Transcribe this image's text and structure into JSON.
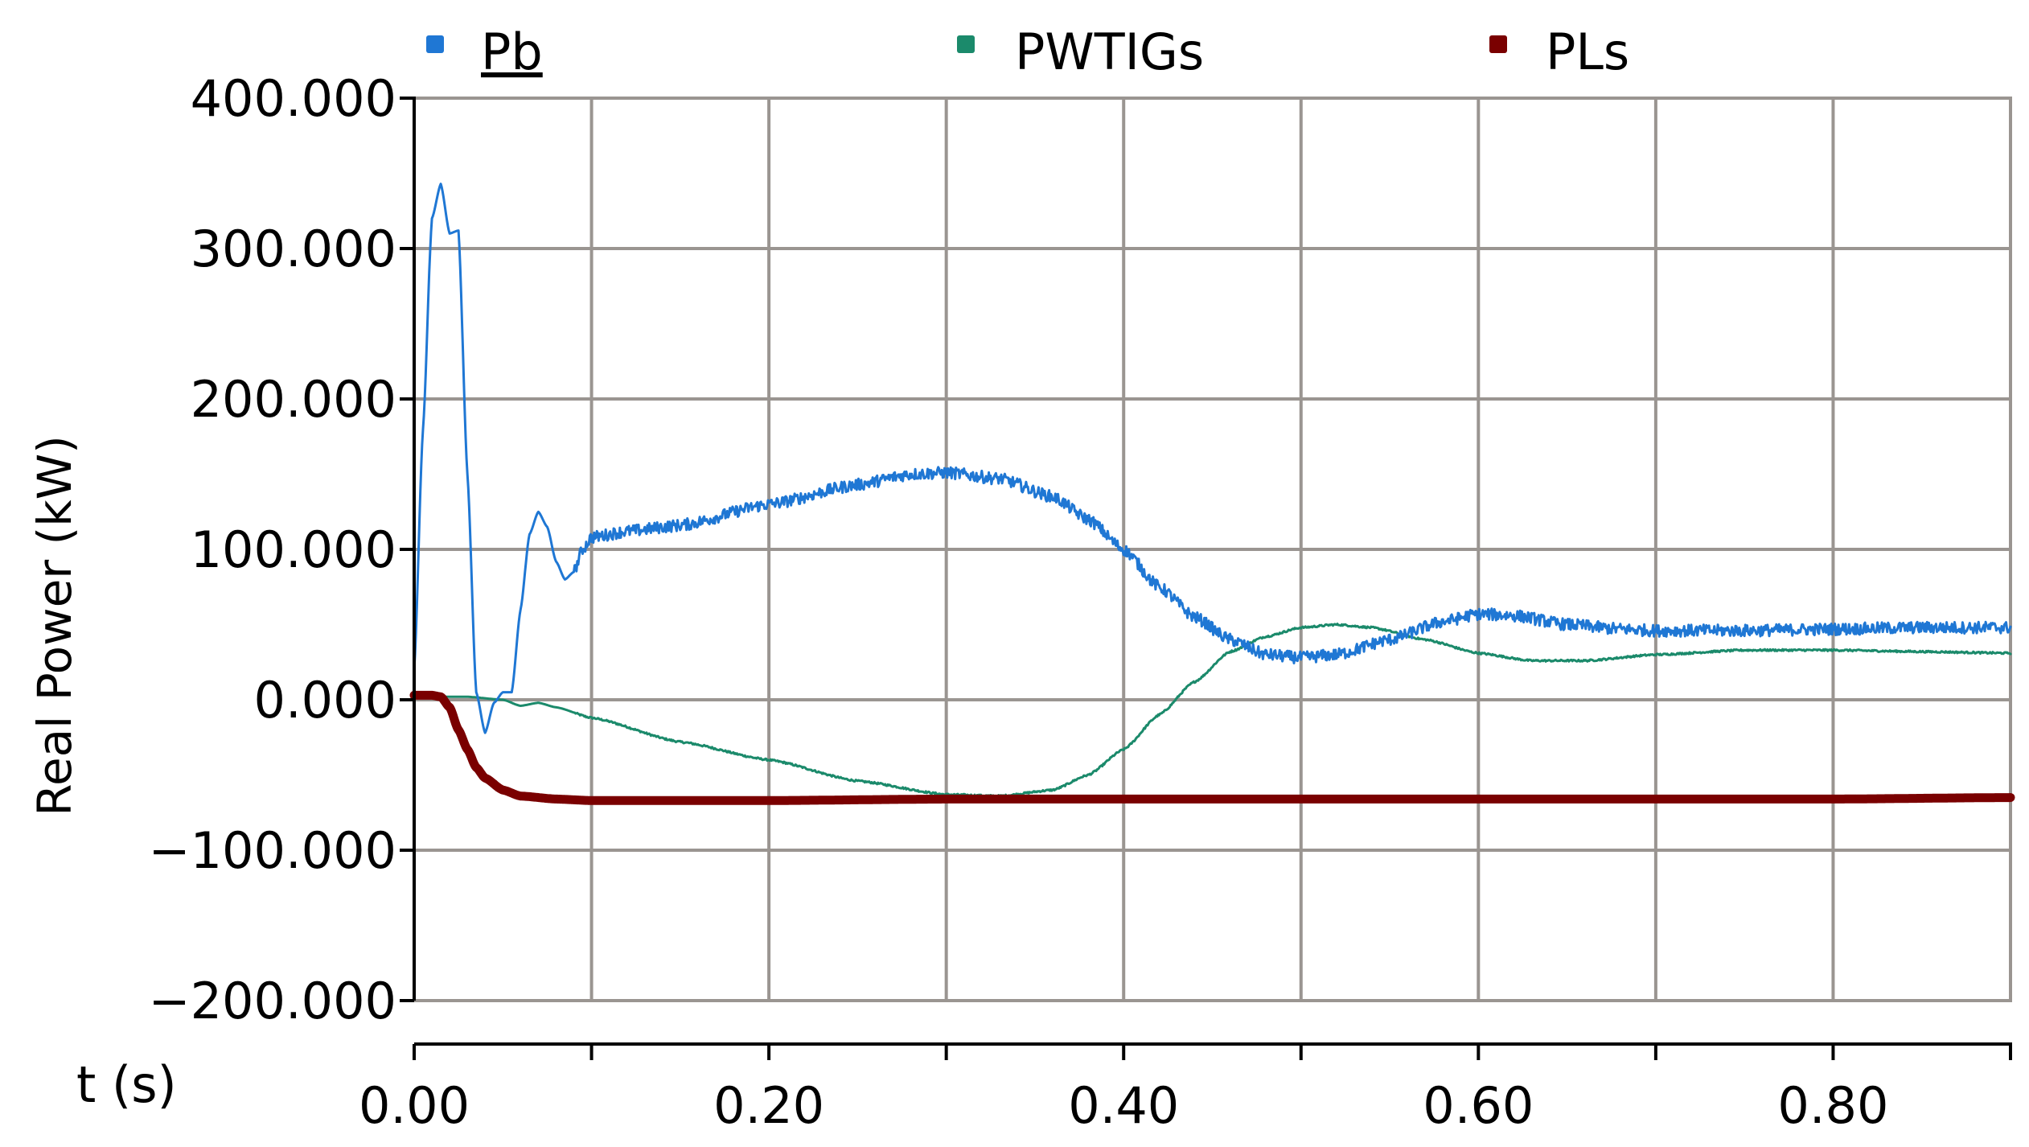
{
  "chart_data": {
    "type": "line",
    "title": "",
    "xlabel": "t (s)",
    "ylabel": "Real Power (kW)",
    "xlim": [
      0.0,
      0.9
    ],
    "ylim": [
      -200,
      400
    ],
    "x_ticks": [
      0.0,
      0.1,
      0.2,
      0.3,
      0.4,
      0.5,
      0.6,
      0.7,
      0.8,
      0.9
    ],
    "x_tick_labels": [
      {
        "x": 0.0,
        "label": "0.00"
      },
      {
        "x": 0.2,
        "label": "0.20"
      },
      {
        "x": 0.4,
        "label": "0.40"
      },
      {
        "x": 0.6,
        "label": "0.60"
      },
      {
        "x": 0.8,
        "label": "0.80"
      }
    ],
    "y_tick_labels": [
      {
        "y": 400,
        "label": "400.000"
      },
      {
        "y": 300,
        "label": "300.000"
      },
      {
        "y": 200,
        "label": "200.000"
      },
      {
        "y": 100,
        "label": "100.000"
      },
      {
        "y": 0,
        "label": "0.000"
      },
      {
        "y": -100,
        "label": "−100.000"
      },
      {
        "y": -200,
        "label": "−200.000"
      }
    ],
    "grid": true,
    "legend_position": "top",
    "series": [
      {
        "name": "Pb",
        "color": "#1f77d4",
        "noise": 4,
        "points": [
          [
            0.0,
            20
          ],
          [
            0.005,
            180
          ],
          [
            0.01,
            320
          ],
          [
            0.015,
            343
          ],
          [
            0.02,
            310
          ],
          [
            0.025,
            312
          ],
          [
            0.03,
            150
          ],
          [
            0.035,
            5
          ],
          [
            0.04,
            -22
          ],
          [
            0.045,
            -2
          ],
          [
            0.05,
            5
          ],
          [
            0.055,
            5
          ],
          [
            0.06,
            60
          ],
          [
            0.065,
            110
          ],
          [
            0.07,
            125
          ],
          [
            0.075,
            115
          ],
          [
            0.08,
            92
          ],
          [
            0.085,
            80
          ],
          [
            0.09,
            85
          ],
          [
            0.095,
            100
          ],
          [
            0.1,
            108
          ],
          [
            0.12,
            112
          ],
          [
            0.15,
            116
          ],
          [
            0.2,
            130
          ],
          [
            0.25,
            143
          ],
          [
            0.28,
            150
          ],
          [
            0.3,
            151
          ],
          [
            0.33,
            147
          ],
          [
            0.36,
            135
          ],
          [
            0.38,
            120
          ],
          [
            0.4,
            100
          ],
          [
            0.42,
            75
          ],
          [
            0.44,
            55
          ],
          [
            0.46,
            40
          ],
          [
            0.48,
            30
          ],
          [
            0.5,
            28
          ],
          [
            0.52,
            30
          ],
          [
            0.55,
            40
          ],
          [
            0.58,
            52
          ],
          [
            0.6,
            57
          ],
          [
            0.62,
            56
          ],
          [
            0.65,
            50
          ],
          [
            0.68,
            47
          ],
          [
            0.7,
            46
          ],
          [
            0.75,
            46
          ],
          [
            0.8,
            47
          ],
          [
            0.85,
            48
          ],
          [
            0.9,
            48
          ]
        ]
      },
      {
        "name": "PWTIGs",
        "color": "#1b8a6b",
        "noise": 0.6,
        "points": [
          [
            0.0,
            2
          ],
          [
            0.03,
            2
          ],
          [
            0.05,
            0
          ],
          [
            0.06,
            -4
          ],
          [
            0.07,
            -2
          ],
          [
            0.08,
            -5
          ],
          [
            0.1,
            -12
          ],
          [
            0.15,
            -28
          ],
          [
            0.2,
            -40
          ],
          [
            0.25,
            -54
          ],
          [
            0.3,
            -63
          ],
          [
            0.33,
            -64
          ],
          [
            0.36,
            -60
          ],
          [
            0.38,
            -50
          ],
          [
            0.4,
            -33
          ],
          [
            0.42,
            -10
          ],
          [
            0.44,
            12
          ],
          [
            0.46,
            32
          ],
          [
            0.48,
            42
          ],
          [
            0.5,
            48
          ],
          [
            0.52,
            50
          ],
          [
            0.54,
            48
          ],
          [
            0.57,
            40
          ],
          [
            0.6,
            31
          ],
          [
            0.63,
            26
          ],
          [
            0.66,
            26
          ],
          [
            0.7,
            30
          ],
          [
            0.75,
            33
          ],
          [
            0.8,
            33
          ],
          [
            0.85,
            32
          ],
          [
            0.9,
            31
          ]
        ]
      },
      {
        "name": "PLs",
        "color": "#7a0000",
        "noise": 0,
        "points": [
          [
            0.0,
            3
          ],
          [
            0.01,
            3
          ],
          [
            0.015,
            2
          ],
          [
            0.02,
            -5
          ],
          [
            0.025,
            -20
          ],
          [
            0.03,
            -33
          ],
          [
            0.035,
            -45
          ],
          [
            0.04,
            -52
          ],
          [
            0.05,
            -60
          ],
          [
            0.06,
            -64
          ],
          [
            0.08,
            -66
          ],
          [
            0.1,
            -67
          ],
          [
            0.15,
            -67
          ],
          [
            0.2,
            -67
          ],
          [
            0.3,
            -66
          ],
          [
            0.4,
            -66
          ],
          [
            0.5,
            -66
          ],
          [
            0.6,
            -66
          ],
          [
            0.7,
            -66
          ],
          [
            0.8,
            -66
          ],
          [
            0.9,
            -65
          ]
        ]
      }
    ]
  }
}
